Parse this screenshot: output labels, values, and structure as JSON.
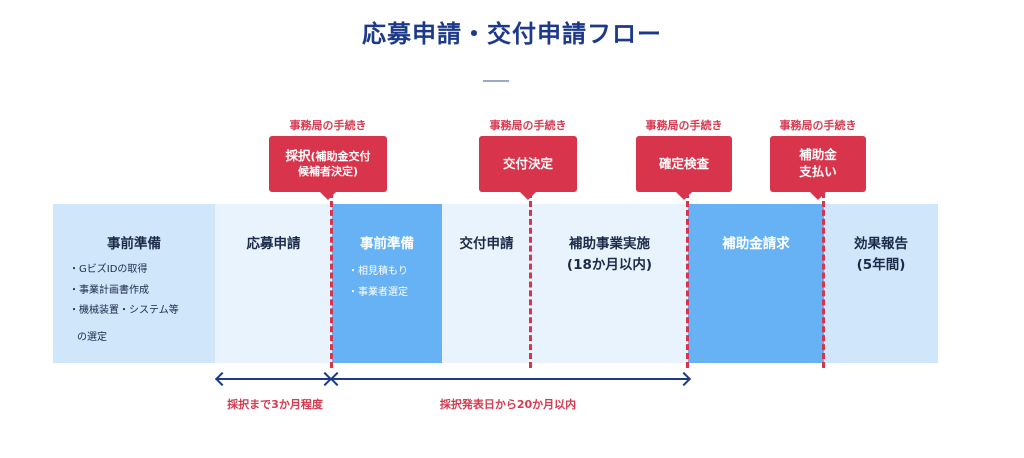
{
  "title": "応募申請・交付申請フロー",
  "procedure_label": "事務局の手続き",
  "callouts": {
    "adoption": {
      "main": "採択",
      "sub": "(補助金交付",
      "sub2": "候補者決定)"
    },
    "grant_decision": "交付決定",
    "final_inspection": "確定検査",
    "payment": {
      "line1": "補助金",
      "line2": "支払い"
    }
  },
  "phases": [
    {
      "title": "事前準備",
      "items": [
        "GビズIDの取得",
        "事業計画書作成",
        "機械装置・システム等",
        "の選定"
      ]
    },
    {
      "title": "応募申請"
    },
    {
      "title": "事前準備",
      "items": [
        "相見積もり",
        "事業者選定"
      ]
    },
    {
      "title": "交付申請"
    },
    {
      "title": "補助事業実施",
      "sub": "(18か月以内)"
    },
    {
      "title": "補助金請求"
    },
    {
      "title": "効果報告",
      "sub": "(5年間)"
    }
  ],
  "arrows": [
    {
      "label": "採択まで3か月程度"
    },
    {
      "label": "採択発表日から20か月以内"
    }
  ],
  "colors": {
    "navy": "#1d3a8a",
    "red": "#d8354c",
    "light_blue": "#cfe6fb",
    "pale_blue": "#e8f3fd",
    "mid_blue": "#66b2f5"
  }
}
